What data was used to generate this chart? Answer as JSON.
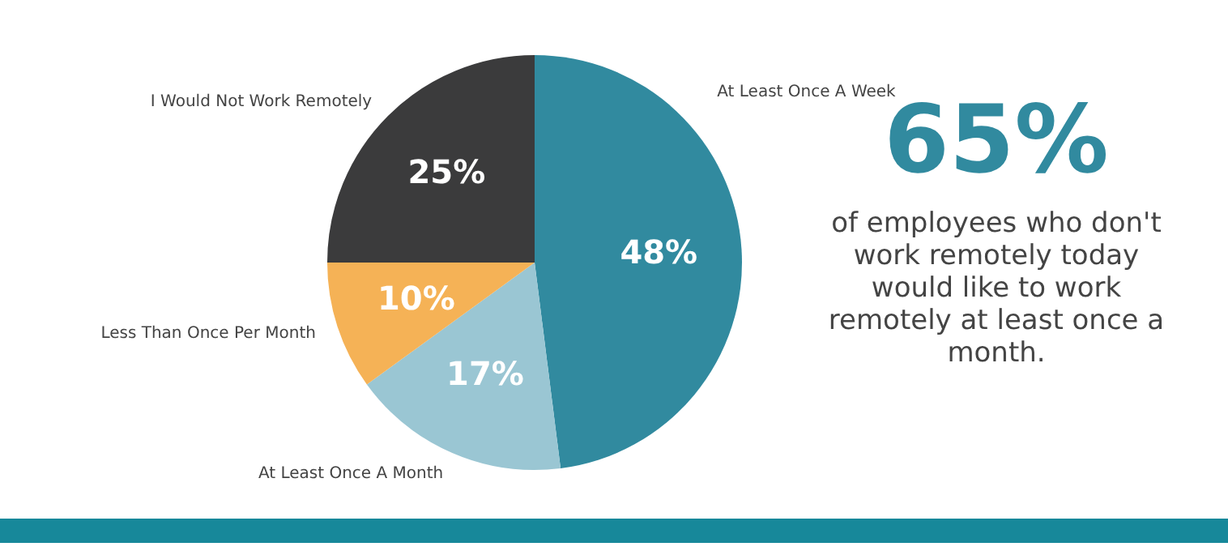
{
  "chart_data": {
    "type": "pie",
    "categories": [
      "At Least Once A Week",
      "At Least Once A Month",
      "Less Than Once Per Month",
      "I Would Not Work Remotely"
    ],
    "values": [
      48,
      17,
      10,
      25
    ],
    "colors": [
      "#318a9f",
      "#9ac6d3",
      "#f5b256",
      "#3b3b3c"
    ],
    "value_labels": [
      "48%",
      "17%",
      "10%",
      "25%"
    ],
    "annotations": [
      "65%",
      "of employees who don't work remotely today would like to work remotely at least once a month."
    ],
    "legend": false
  }
}
